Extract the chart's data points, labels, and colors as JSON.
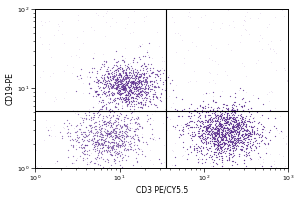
{
  "xlabel": "CD3 PE/CY5.5",
  "ylabel": "CD19-PE",
  "xlim": [
    1.0,
    1000.0
  ],
  "ylim": [
    1.0,
    100.0
  ],
  "gate_x_log": 1.55,
  "gate_y_log": 0.72,
  "dot_color_dense": "#5b2d8e",
  "dot_color_sparse": "#c0a0d8",
  "background": "#ffffff",
  "cluster1_x_log": 1.1,
  "cluster1_y_log": 1.05,
  "cluster1_sx": 0.2,
  "cluster1_sy": 0.14,
  "cluster1_n": 1000,
  "cluster2_x_log": 0.85,
  "cluster2_y_log": 0.4,
  "cluster2_sx": 0.22,
  "cluster2_sy": 0.18,
  "cluster2_n": 700,
  "cluster3_x_log": 2.25,
  "cluster3_y_log": 0.45,
  "cluster3_sx": 0.22,
  "cluster3_sy": 0.18,
  "cluster3_n": 1300,
  "sparse_n": 400
}
